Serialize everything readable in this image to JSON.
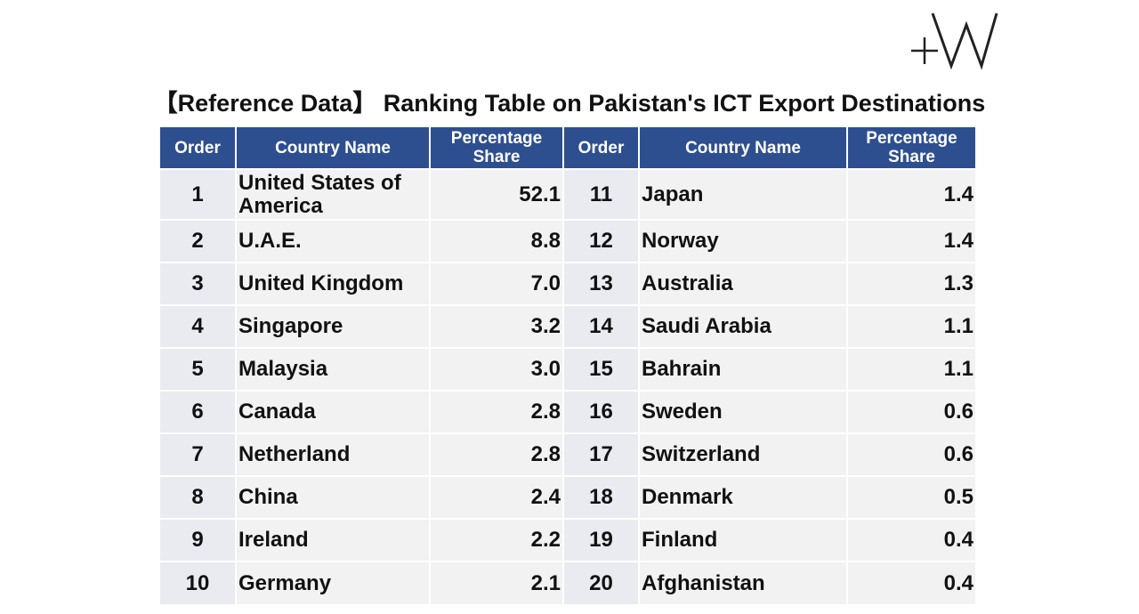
{
  "logo": {
    "text": "+W"
  },
  "title": "【Reference Data】 Ranking Table on Pakistan's ICT Export Destinations",
  "table": {
    "headers": [
      "Order",
      "Country Name",
      "Percentage Share",
      "Order",
      "Country Name",
      "Percentage Share"
    ],
    "left_rows": [
      {
        "order": "1",
        "country": "United States of America",
        "share": "52.1"
      },
      {
        "order": "2",
        "country": "U.A.E.",
        "share": "8.8"
      },
      {
        "order": "3",
        "country": "United Kingdom",
        "share": "7.0"
      },
      {
        "order": "4",
        "country": "Singapore",
        "share": "3.2"
      },
      {
        "order": "5",
        "country": "Malaysia",
        "share": "3.0"
      },
      {
        "order": "6",
        "country": "Canada",
        "share": "2.8"
      },
      {
        "order": "7",
        "country": "Netherland",
        "share": "2.8"
      },
      {
        "order": "8",
        "country": "China",
        "share": "2.4"
      },
      {
        "order": "9",
        "country": "Ireland",
        "share": "2.2"
      },
      {
        "order": "10",
        "country": "Germany",
        "share": "2.1"
      }
    ],
    "right_rows": [
      {
        "order": "11",
        "country": "Japan",
        "share": "1.4"
      },
      {
        "order": "12",
        "country": "Norway",
        "share": "1.4"
      },
      {
        "order": "13",
        "country": "Australia",
        "share": "1.3"
      },
      {
        "order": "14",
        "country": "Saudi Arabia",
        "share": "1.1"
      },
      {
        "order": "15",
        "country": "Bahrain",
        "share": "1.1"
      },
      {
        "order": "16",
        "country": "Sweden",
        "share": "0.6"
      },
      {
        "order": "17",
        "country": "Switzerland",
        "share": "0.6"
      },
      {
        "order": "18",
        "country": "Denmark",
        "share": "0.5"
      },
      {
        "order": "19",
        "country": "Finland",
        "share": "0.4"
      },
      {
        "order": "20",
        "country": "Afghanistan",
        "share": "0.4"
      }
    ]
  }
}
